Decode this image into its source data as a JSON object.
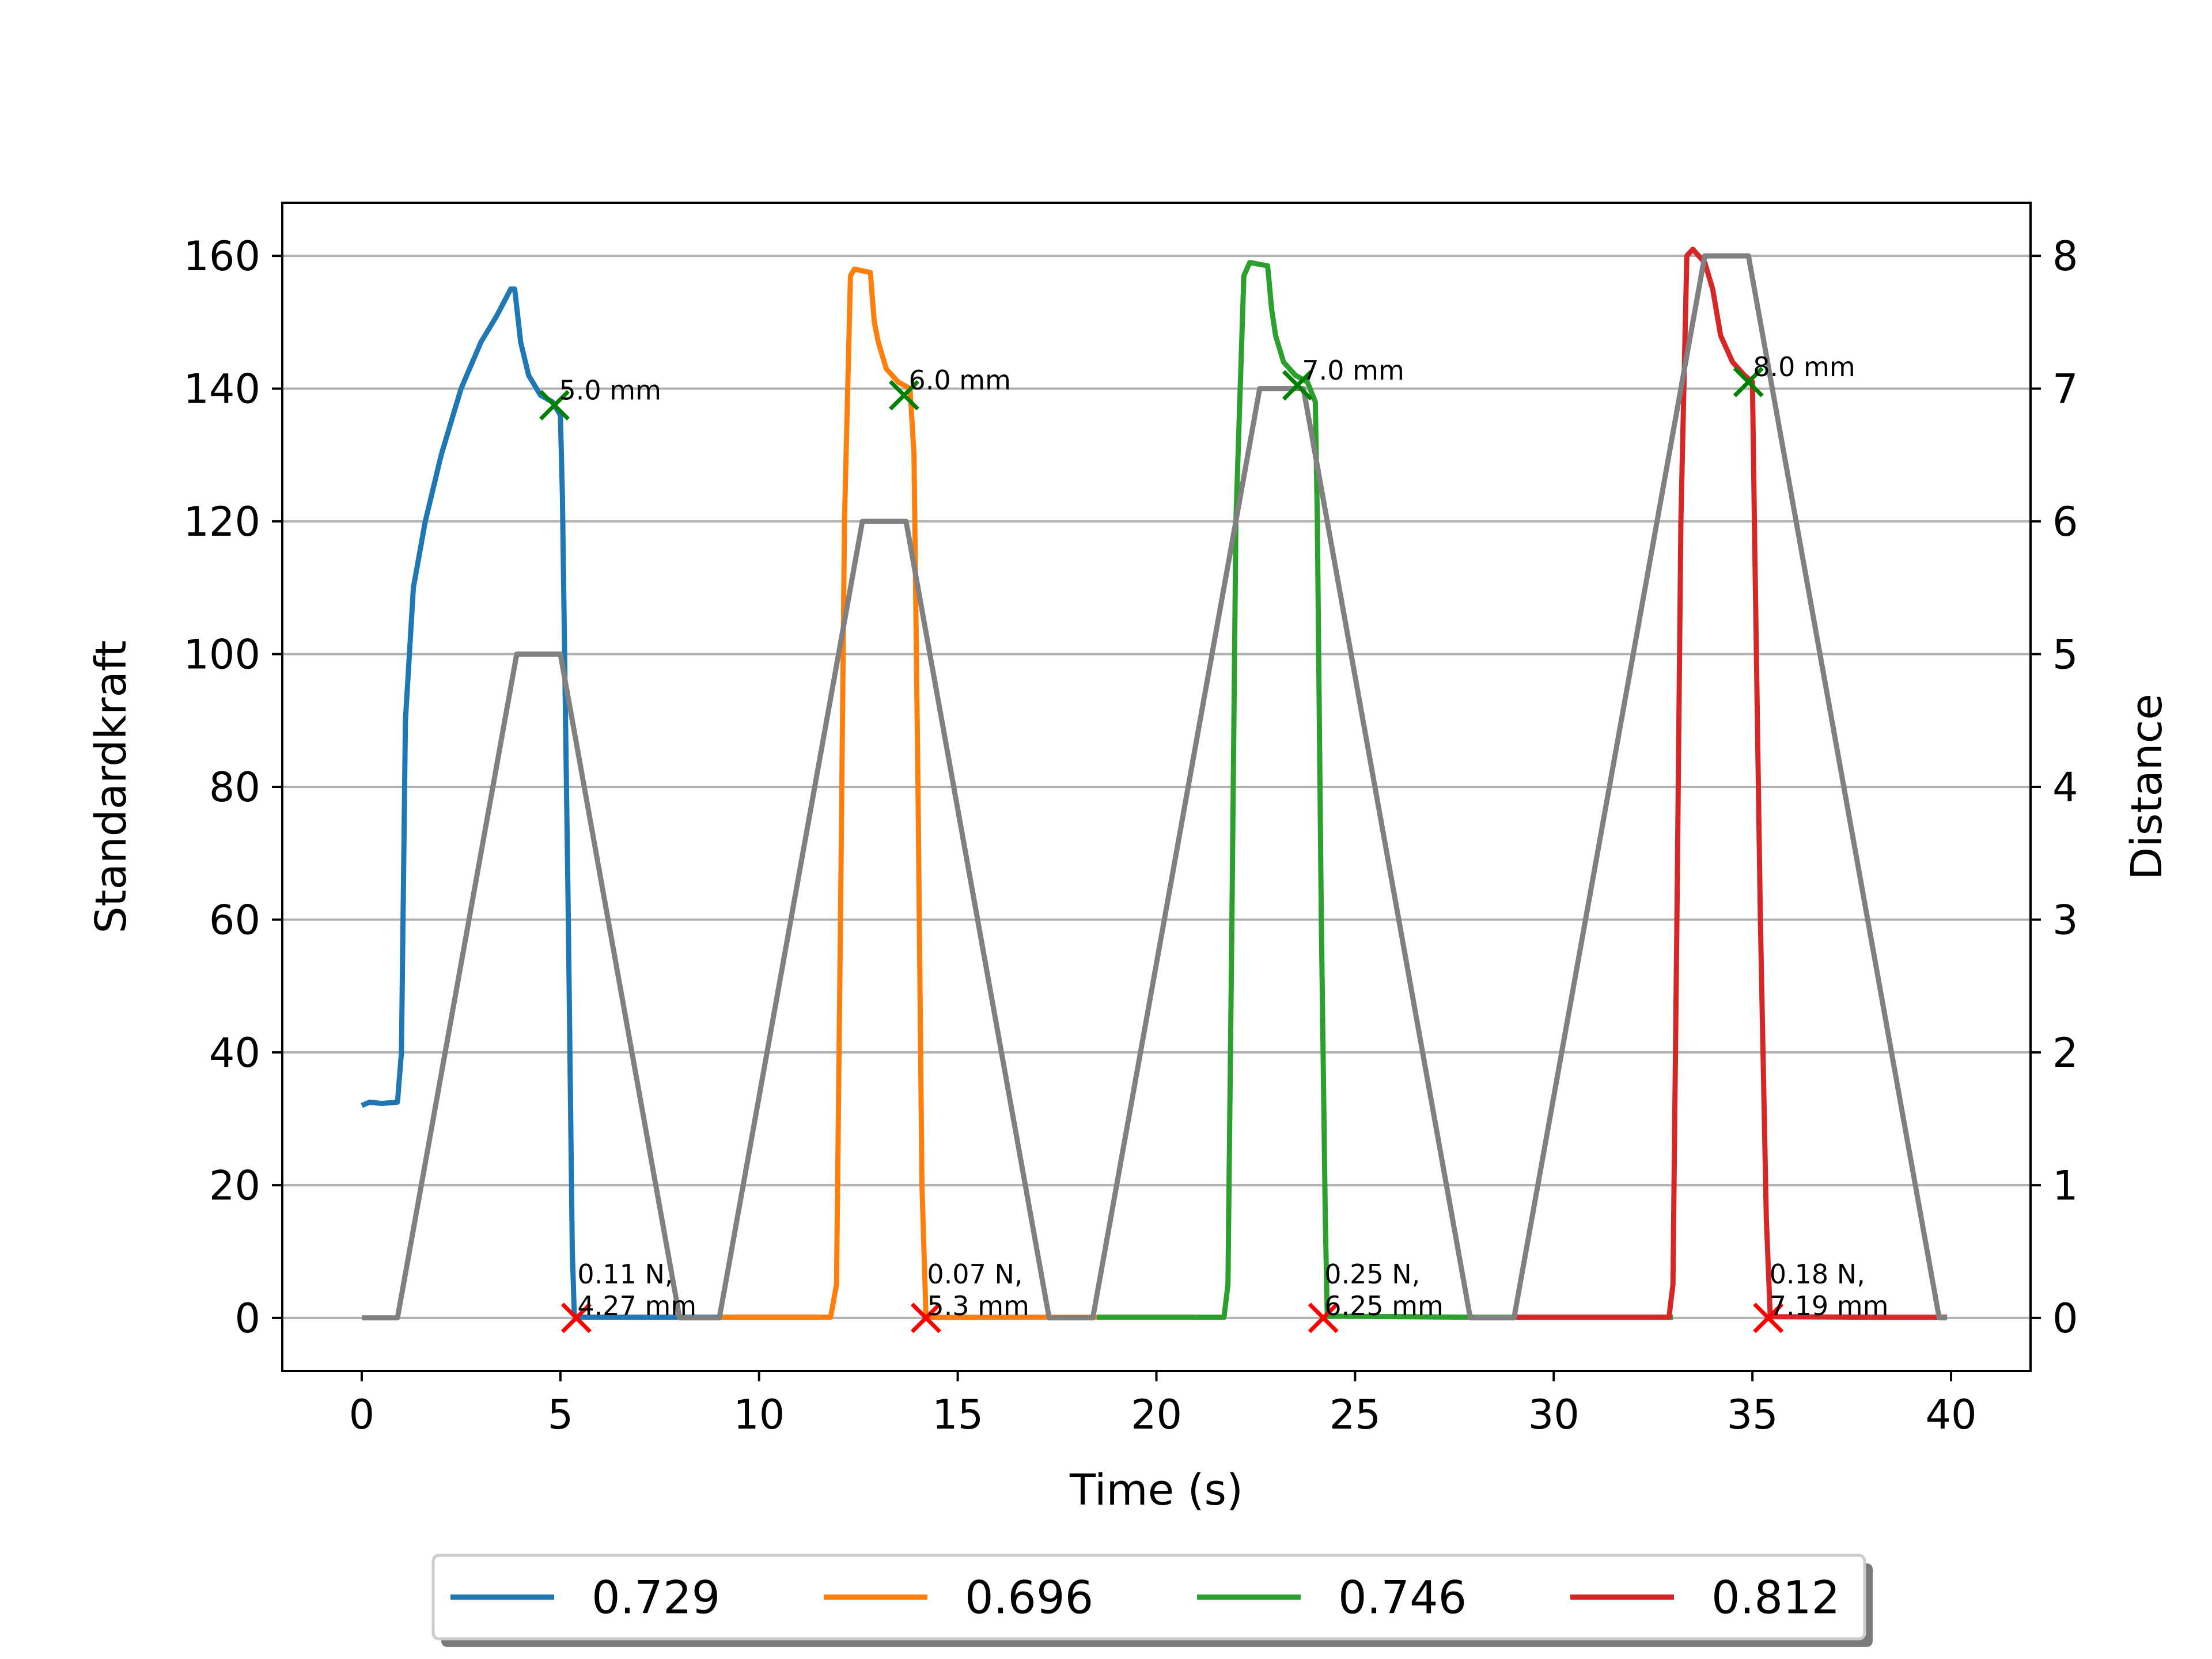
{
  "chart_data": {
    "type": "line",
    "title": "",
    "xlabel": "Time (s)",
    "ylabel": "Standardkraft",
    "y2label": "Distance",
    "xlim": [
      -2,
      42
    ],
    "ylim": [
      -8,
      168
    ],
    "y2lim": [
      -0.4,
      8.4
    ],
    "x_ticks": [
      0,
      5,
      10,
      15,
      20,
      25,
      30,
      35,
      40
    ],
    "y_ticks": [
      0,
      20,
      40,
      60,
      80,
      100,
      120,
      140,
      160
    ],
    "y2_ticks": [
      0,
      1,
      2,
      3,
      4,
      5,
      6,
      7,
      8
    ],
    "grid": "horizontal",
    "legend_position": "bottom-center",
    "series": [
      {
        "name": "0.729",
        "color": "#1f77b4",
        "axis": "left",
        "points": [
          [
            0,
            32
          ],
          [
            0.2,
            32.5
          ],
          [
            0.5,
            32.3
          ],
          [
            0.9,
            32.5
          ],
          [
            1.0,
            40
          ],
          [
            1.1,
            90
          ],
          [
            1.3,
            110
          ],
          [
            1.6,
            120
          ],
          [
            2.0,
            130
          ],
          [
            2.5,
            140
          ],
          [
            3.0,
            147
          ],
          [
            3.4,
            151
          ],
          [
            3.75,
            155
          ],
          [
            3.85,
            155
          ],
          [
            4.0,
            147
          ],
          [
            4.2,
            142
          ],
          [
            4.5,
            139
          ],
          [
            4.8,
            138
          ],
          [
            5.0,
            136
          ],
          [
            5.05,
            124
          ],
          [
            5.2,
            60
          ],
          [
            5.3,
            10
          ],
          [
            5.35,
            0.5
          ],
          [
            5.4,
            0.11
          ],
          [
            7.5,
            0.1
          ],
          [
            11.5,
            0.1
          ]
        ]
      },
      {
        "name": "0.696",
        "color": "#ff7f0e",
        "axis": "left",
        "points": [
          [
            9,
            0.1
          ],
          [
            11.8,
            0.1
          ],
          [
            11.95,
            5
          ],
          [
            12.05,
            60
          ],
          [
            12.15,
            120
          ],
          [
            12.3,
            157
          ],
          [
            12.4,
            158
          ],
          [
            12.8,
            157.5
          ],
          [
            12.9,
            150
          ],
          [
            13.0,
            147
          ],
          [
            13.2,
            143
          ],
          [
            13.5,
            141
          ],
          [
            13.8,
            140
          ],
          [
            13.9,
            130
          ],
          [
            14.0,
            80
          ],
          [
            14.1,
            20
          ],
          [
            14.2,
            0.5
          ],
          [
            14.25,
            0.07
          ],
          [
            17.5,
            0.1
          ],
          [
            21,
            0.1
          ]
        ]
      },
      {
        "name": "0.746",
        "color": "#2ca02c",
        "axis": "left",
        "points": [
          [
            18.5,
            0.1
          ],
          [
            21.7,
            0.1
          ],
          [
            21.8,
            5
          ],
          [
            21.9,
            60
          ],
          [
            22.0,
            120
          ],
          [
            22.2,
            157
          ],
          [
            22.35,
            159
          ],
          [
            22.8,
            158.5
          ],
          [
            22.9,
            152
          ],
          [
            23.0,
            148
          ],
          [
            23.2,
            144
          ],
          [
            23.5,
            142
          ],
          [
            23.8,
            141
          ],
          [
            24.0,
            138
          ],
          [
            24.05,
            120
          ],
          [
            24.15,
            60
          ],
          [
            24.25,
            15
          ],
          [
            24.3,
            0.25
          ],
          [
            28,
            0.1
          ],
          [
            33,
            0.1
          ]
        ]
      },
      {
        "name": "0.812",
        "color": "#d62728",
        "axis": "left",
        "points": [
          [
            29,
            0.1
          ],
          [
            32.9,
            0.1
          ],
          [
            33.0,
            5
          ],
          [
            33.1,
            60
          ],
          [
            33.2,
            120
          ],
          [
            33.35,
            160
          ],
          [
            33.5,
            161
          ],
          [
            33.8,
            159
          ],
          [
            34.0,
            155
          ],
          [
            34.2,
            148
          ],
          [
            34.5,
            144
          ],
          [
            34.8,
            142
          ],
          [
            35.0,
            141
          ],
          [
            35.05,
            120
          ],
          [
            35.2,
            60
          ],
          [
            35.35,
            15
          ],
          [
            35.45,
            0.18
          ],
          [
            38,
            0.1
          ],
          [
            39.9,
            0.1
          ]
        ]
      },
      {
        "name": "Distance",
        "color": "#808080",
        "axis": "right",
        "in_legend": false,
        "points": [
          [
            0,
            0
          ],
          [
            0.9,
            0
          ],
          [
            3.9,
            5
          ],
          [
            4.0,
            5
          ],
          [
            4.9,
            5
          ],
          [
            5.0,
            5
          ],
          [
            8.0,
            0
          ],
          [
            9.0,
            0
          ],
          [
            12.6,
            6
          ],
          [
            13.7,
            6
          ],
          [
            17.3,
            0
          ],
          [
            18.4,
            0
          ],
          [
            22.6,
            7
          ],
          [
            23.7,
            7
          ],
          [
            27.9,
            0
          ],
          [
            29.0,
            0
          ],
          [
            33.8,
            8
          ],
          [
            34.9,
            8
          ],
          [
            39.7,
            0
          ],
          [
            39.9,
            0
          ]
        ]
      }
    ],
    "markers_top": [
      {
        "x": 4.85,
        "y": 137.5,
        "color": "#008000",
        "label": "5.0 mm"
      },
      {
        "x": 13.65,
        "y": 139,
        "color": "#008000",
        "label": "6.0 mm"
      },
      {
        "x": 23.55,
        "y": 140.5,
        "color": "#008000",
        "label": "7.0 mm"
      },
      {
        "x": 34.9,
        "y": 141,
        "color": "#008000",
        "label": "8.0 mm"
      }
    ],
    "markers_bottom": [
      {
        "x": 5.4,
        "y": 0,
        "color": "#ff0000",
        "label_line1": "0.11 N,",
        "label_line2": "4.27 mm"
      },
      {
        "x": 14.2,
        "y": 0,
        "color": "#ff0000",
        "label_line1": "0.07 N,",
        "label_line2": "5.3 mm"
      },
      {
        "x": 24.2,
        "y": 0,
        "color": "#ff0000",
        "label_line1": "0.25 N,",
        "label_line2": "6.25 mm"
      },
      {
        "x": 35.4,
        "y": 0,
        "color": "#ff0000",
        "label_line1": "0.18 N,",
        "label_line2": "7.19 mm"
      }
    ]
  }
}
